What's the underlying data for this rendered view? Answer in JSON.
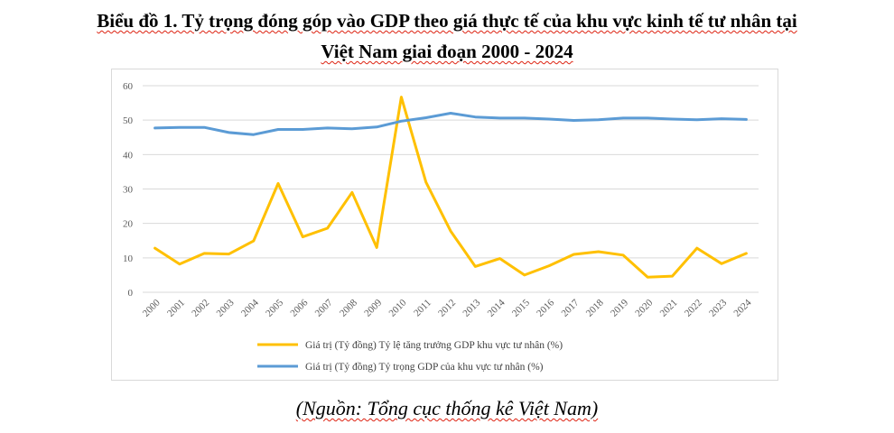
{
  "title_line1": "Biểu đồ 1. Tỷ trọng đóng góp vào GDP theo giá thực tế của khu vực kinh tế tư nhân tại",
  "title_line2": "Việt Nam giai đoạn 2000 - 2024",
  "source": "(Nguồn: Tổng cục thống kê Việt Nam)",
  "chart_data": {
    "type": "line",
    "title": "Biểu đồ 1. Tỷ trọng đóng góp vào GDP theo giá thực tế của khu vực kinh tế tư nhân tại Việt Nam giai đoạn 2000 - 2024",
    "categories": [
      "2000",
      "2001",
      "2002",
      "2003",
      "2004",
      "2005",
      "2006",
      "2007",
      "2008",
      "2009",
      "2010",
      "2011",
      "2012",
      "2013",
      "2014",
      "2015",
      "2016",
      "2017",
      "2018",
      "2019",
      "2020",
      "2021",
      "2022",
      "2023",
      "2024"
    ],
    "yticks": [
      "0",
      "10",
      "20",
      "30",
      "40",
      "50",
      "60"
    ],
    "ylim": [
      0,
      60
    ],
    "grid": true,
    "legend_position": "bottom",
    "series": [
      {
        "name": "Giá trị (Tỷ đồng) Tỷ lệ tăng trưởng GDP khu vực tư nhân (%)",
        "color": "#FFC000",
        "values": [
          12.8,
          8.2,
          11.3,
          11.1,
          14.9,
          31.6,
          16.1,
          18.6,
          29.0,
          13.0,
          56.7,
          32.0,
          17.8,
          7.5,
          9.8,
          5.0,
          7.7,
          11.0,
          11.8,
          10.8,
          4.4,
          4.7,
          12.8,
          8.3,
          11.3
        ]
      },
      {
        "name": "Giá trị (Tỷ đồng) Tỷ trọng GDP của khu vực tư nhân (%)",
        "color": "#5B9BD5",
        "values": [
          47.7,
          47.9,
          47.9,
          46.4,
          45.8,
          47.3,
          47.3,
          47.7,
          47.5,
          48.0,
          49.7,
          50.7,
          52.0,
          50.9,
          50.6,
          50.6,
          50.3,
          49.9,
          50.1,
          50.6,
          50.6,
          50.3,
          50.1,
          50.4,
          50.2
        ]
      }
    ]
  }
}
